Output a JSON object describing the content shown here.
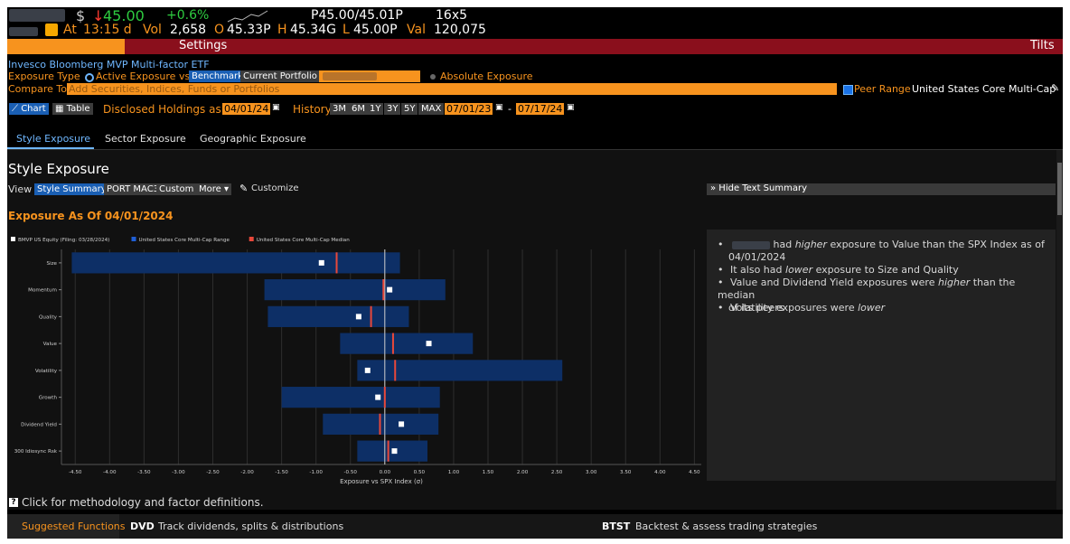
{
  "quote": {
    "currency_sign": "$",
    "arrow": "↓",
    "price": "45.00",
    "change": "+0.6%",
    "bid_ask": "P45.00/45.01P",
    "size": "16x5",
    "at_label": "At",
    "time": "13:15 d",
    "vol_label": "Vol",
    "vol": "2,658",
    "open_label": "O",
    "open": "45.33P",
    "high_label": "H",
    "high": "45.34G",
    "low_label": "L",
    "low": "45.00P",
    "val_label": "Val",
    "val": "120,075"
  },
  "settings_bar": {
    "settings": "Settings",
    "tilts": "Tilts"
  },
  "fund_name": "Invesco Bloomberg MVP Multi-factor ETF",
  "exposure": {
    "label": "Exposure Type",
    "active_option": "Active Exposure vs",
    "benchmark_btn": "Benchmark",
    "current_portfolio_btn": "Current Portfolio",
    "absolute_option": "Absolute Exposure"
  },
  "compare": {
    "label": "Compare To",
    "placeholder": "Add Securities, Indices, Funds or Portfolios"
  },
  "peer_range": {
    "label": "Peer Range",
    "value": "United States Core Multi-Cap"
  },
  "toolbar": {
    "chart_btn": "Chart",
    "table_btn": "Table",
    "disclosed_label": "Disclosed Holdings as of",
    "disclosed_date": "04/01/24",
    "history_label": "History",
    "periods": [
      "3M",
      "6M",
      "1Y",
      "3Y",
      "5Y",
      "MAX"
    ],
    "from_date": "07/01/23",
    "dash": "-",
    "to_date": "07/17/24"
  },
  "tabs": [
    "Style Exposure",
    "Sector Exposure",
    "Geographic Exposure"
  ],
  "section_title": "Style Exposure",
  "view": {
    "label": "View",
    "buttons": [
      "Style Summary",
      "PORT MAC3",
      "Custom"
    ],
    "more": "More ▾",
    "customize": "Customize",
    "hide_summary": "» Hide Text Summary"
  },
  "exposure_as_of": "Exposure As Of 04/01/2024",
  "summary": {
    "line1_pre": "had",
    "line1_em": "higher",
    "line1_post": "exposure to Value than the SPX Index as of",
    "line1_date": "04/01/2024",
    "line2_pre": "It also had",
    "line2_em": "lower",
    "line2_post": "exposure to Size and Quality",
    "line3_pre": "Value and Dividend Yield exposures were",
    "line3_em": "higher",
    "line3_post": "than the median",
    "line3_cont": "of its peers",
    "line4_pre": "Volatility exposures were",
    "line4_em": "lower"
  },
  "chart_data": {
    "type": "range-dot",
    "xlabel": "Exposure vs SPX Index (σ)",
    "xlim": [
      -4.7,
      4.6
    ],
    "xticks": [
      -4.5,
      -4.0,
      -3.5,
      -3.0,
      -2.5,
      -2.0,
      -1.5,
      -1.0,
      -0.5,
      0.0,
      0.5,
      1.0,
      1.5,
      2.0,
      2.5,
      3.0,
      3.5,
      4.0,
      4.5
    ],
    "xtick_labels": [
      "-4.50",
      "-4.00",
      "-3.50",
      "-3.00",
      "-2.50",
      "-2.00",
      "-1.50",
      "-1.00",
      "-0.50",
      "0.00",
      "0.50",
      "1.00",
      "1.50",
      "2.00",
      "2.50",
      "3.00",
      "3.50",
      "4.00",
      "4.50"
    ],
    "legend": [
      {
        "name": "BMVP US Equity (Filing: 03/28/2024)",
        "color": "#ffffff"
      },
      {
        "name": "United States Core Multi-Cap Range",
        "color": "#1f5fd6"
      },
      {
        "name": "United States Core Multi-Cap Median",
        "color": "#e8483a"
      }
    ],
    "categories": [
      "Size",
      "Momentum",
      "Quality",
      "Value",
      "Volatility",
      "Growth",
      "Dividend Yield",
      "300 Idiosync Rsk"
    ],
    "range_low": [
      -4.55,
      -1.75,
      -1.7,
      -0.65,
      -0.4,
      -1.5,
      -0.9,
      -0.4
    ],
    "range_high": [
      0.22,
      0.88,
      0.35,
      1.28,
      2.58,
      0.8,
      0.78,
      0.62
    ],
    "median": [
      -0.7,
      -0.02,
      -0.2,
      0.12,
      0.15,
      0.0,
      -0.07,
      0.05
    ],
    "fund": [
      -0.92,
      0.07,
      -0.38,
      0.64,
      -0.25,
      -0.1,
      0.24,
      0.14
    ],
    "colors": {
      "range": "#0d2f66",
      "median": "#e8483a",
      "fund": "#ffffff",
      "zero": "#cfcfcf"
    }
  },
  "methodology": "Click for methodology and factor definitions.",
  "footer": {
    "suggested": "Suggested Functions",
    "f1_code": "DVD",
    "f1_desc": "Track dividends, splits & distributions",
    "f2_code": "BTST",
    "f2_desc": "Backtest & assess trading strategies"
  }
}
